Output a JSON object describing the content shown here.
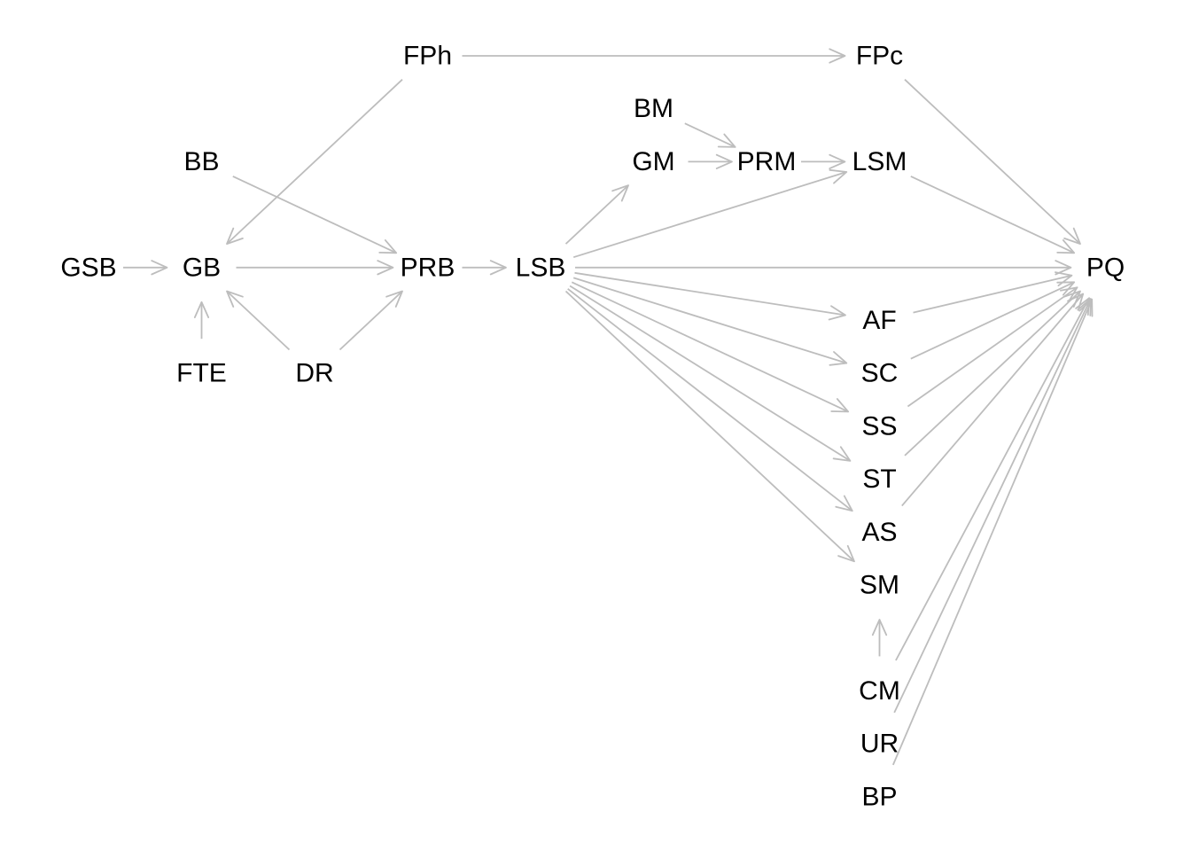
{
  "diagram": {
    "type": "directed-graph",
    "nodes": [
      {
        "id": "FPh",
        "label": "FPh"
      },
      {
        "id": "FPc",
        "label": "FPc"
      },
      {
        "id": "BM",
        "label": "BM"
      },
      {
        "id": "GM",
        "label": "GM"
      },
      {
        "id": "PRM",
        "label": "PRM"
      },
      {
        "id": "LSM",
        "label": "LSM"
      },
      {
        "id": "BB",
        "label": "BB"
      },
      {
        "id": "GSB",
        "label": "GSB"
      },
      {
        "id": "GB",
        "label": "GB"
      },
      {
        "id": "PRB",
        "label": "PRB"
      },
      {
        "id": "LSB",
        "label": "LSB"
      },
      {
        "id": "PQ",
        "label": "PQ"
      },
      {
        "id": "FTE",
        "label": "FTE"
      },
      {
        "id": "DR",
        "label": "DR"
      },
      {
        "id": "AF",
        "label": "AF"
      },
      {
        "id": "SC",
        "label": "SC"
      },
      {
        "id": "SS",
        "label": "SS"
      },
      {
        "id": "ST",
        "label": "ST"
      },
      {
        "id": "AS",
        "label": "AS"
      },
      {
        "id": "SM",
        "label": "SM"
      },
      {
        "id": "CM",
        "label": "CM"
      },
      {
        "id": "UR",
        "label": "UR"
      },
      {
        "id": "BP",
        "label": "BP"
      }
    ],
    "edges": [
      {
        "from": "FPh",
        "to": "FPc"
      },
      {
        "from": "FPh",
        "to": "GB"
      },
      {
        "from": "BB",
        "to": "PRB"
      },
      {
        "from": "GSB",
        "to": "GB"
      },
      {
        "from": "GB",
        "to": "PRB"
      },
      {
        "from": "FTE",
        "to": "GB"
      },
      {
        "from": "DR",
        "to": "GB"
      },
      {
        "from": "DR",
        "to": "PRB"
      },
      {
        "from": "PRB",
        "to": "LSB"
      },
      {
        "from": "BM",
        "to": "PRM"
      },
      {
        "from": "GM",
        "to": "PRM"
      },
      {
        "from": "PRM",
        "to": "LSM"
      },
      {
        "from": "LSB",
        "to": "GM"
      },
      {
        "from": "LSB",
        "to": "LSM"
      },
      {
        "from": "LSB",
        "to": "PQ"
      },
      {
        "from": "LSB",
        "to": "AF"
      },
      {
        "from": "LSB",
        "to": "SC"
      },
      {
        "from": "LSB",
        "to": "SS"
      },
      {
        "from": "LSB",
        "to": "ST"
      },
      {
        "from": "LSB",
        "to": "AS"
      },
      {
        "from": "LSB",
        "to": "SM"
      },
      {
        "from": "FPc",
        "to": "PQ"
      },
      {
        "from": "LSM",
        "to": "PQ"
      },
      {
        "from": "AF",
        "to": "PQ"
      },
      {
        "from": "SC",
        "to": "PQ"
      },
      {
        "from": "SS",
        "to": "PQ"
      },
      {
        "from": "ST",
        "to": "PQ"
      },
      {
        "from": "AS",
        "to": "PQ"
      },
      {
        "from": "CM",
        "to": "SM"
      },
      {
        "from": "CM",
        "to": "PQ"
      },
      {
        "from": "UR",
        "to": "PQ"
      },
      {
        "from": "BP",
        "to": "PQ"
      }
    ]
  }
}
